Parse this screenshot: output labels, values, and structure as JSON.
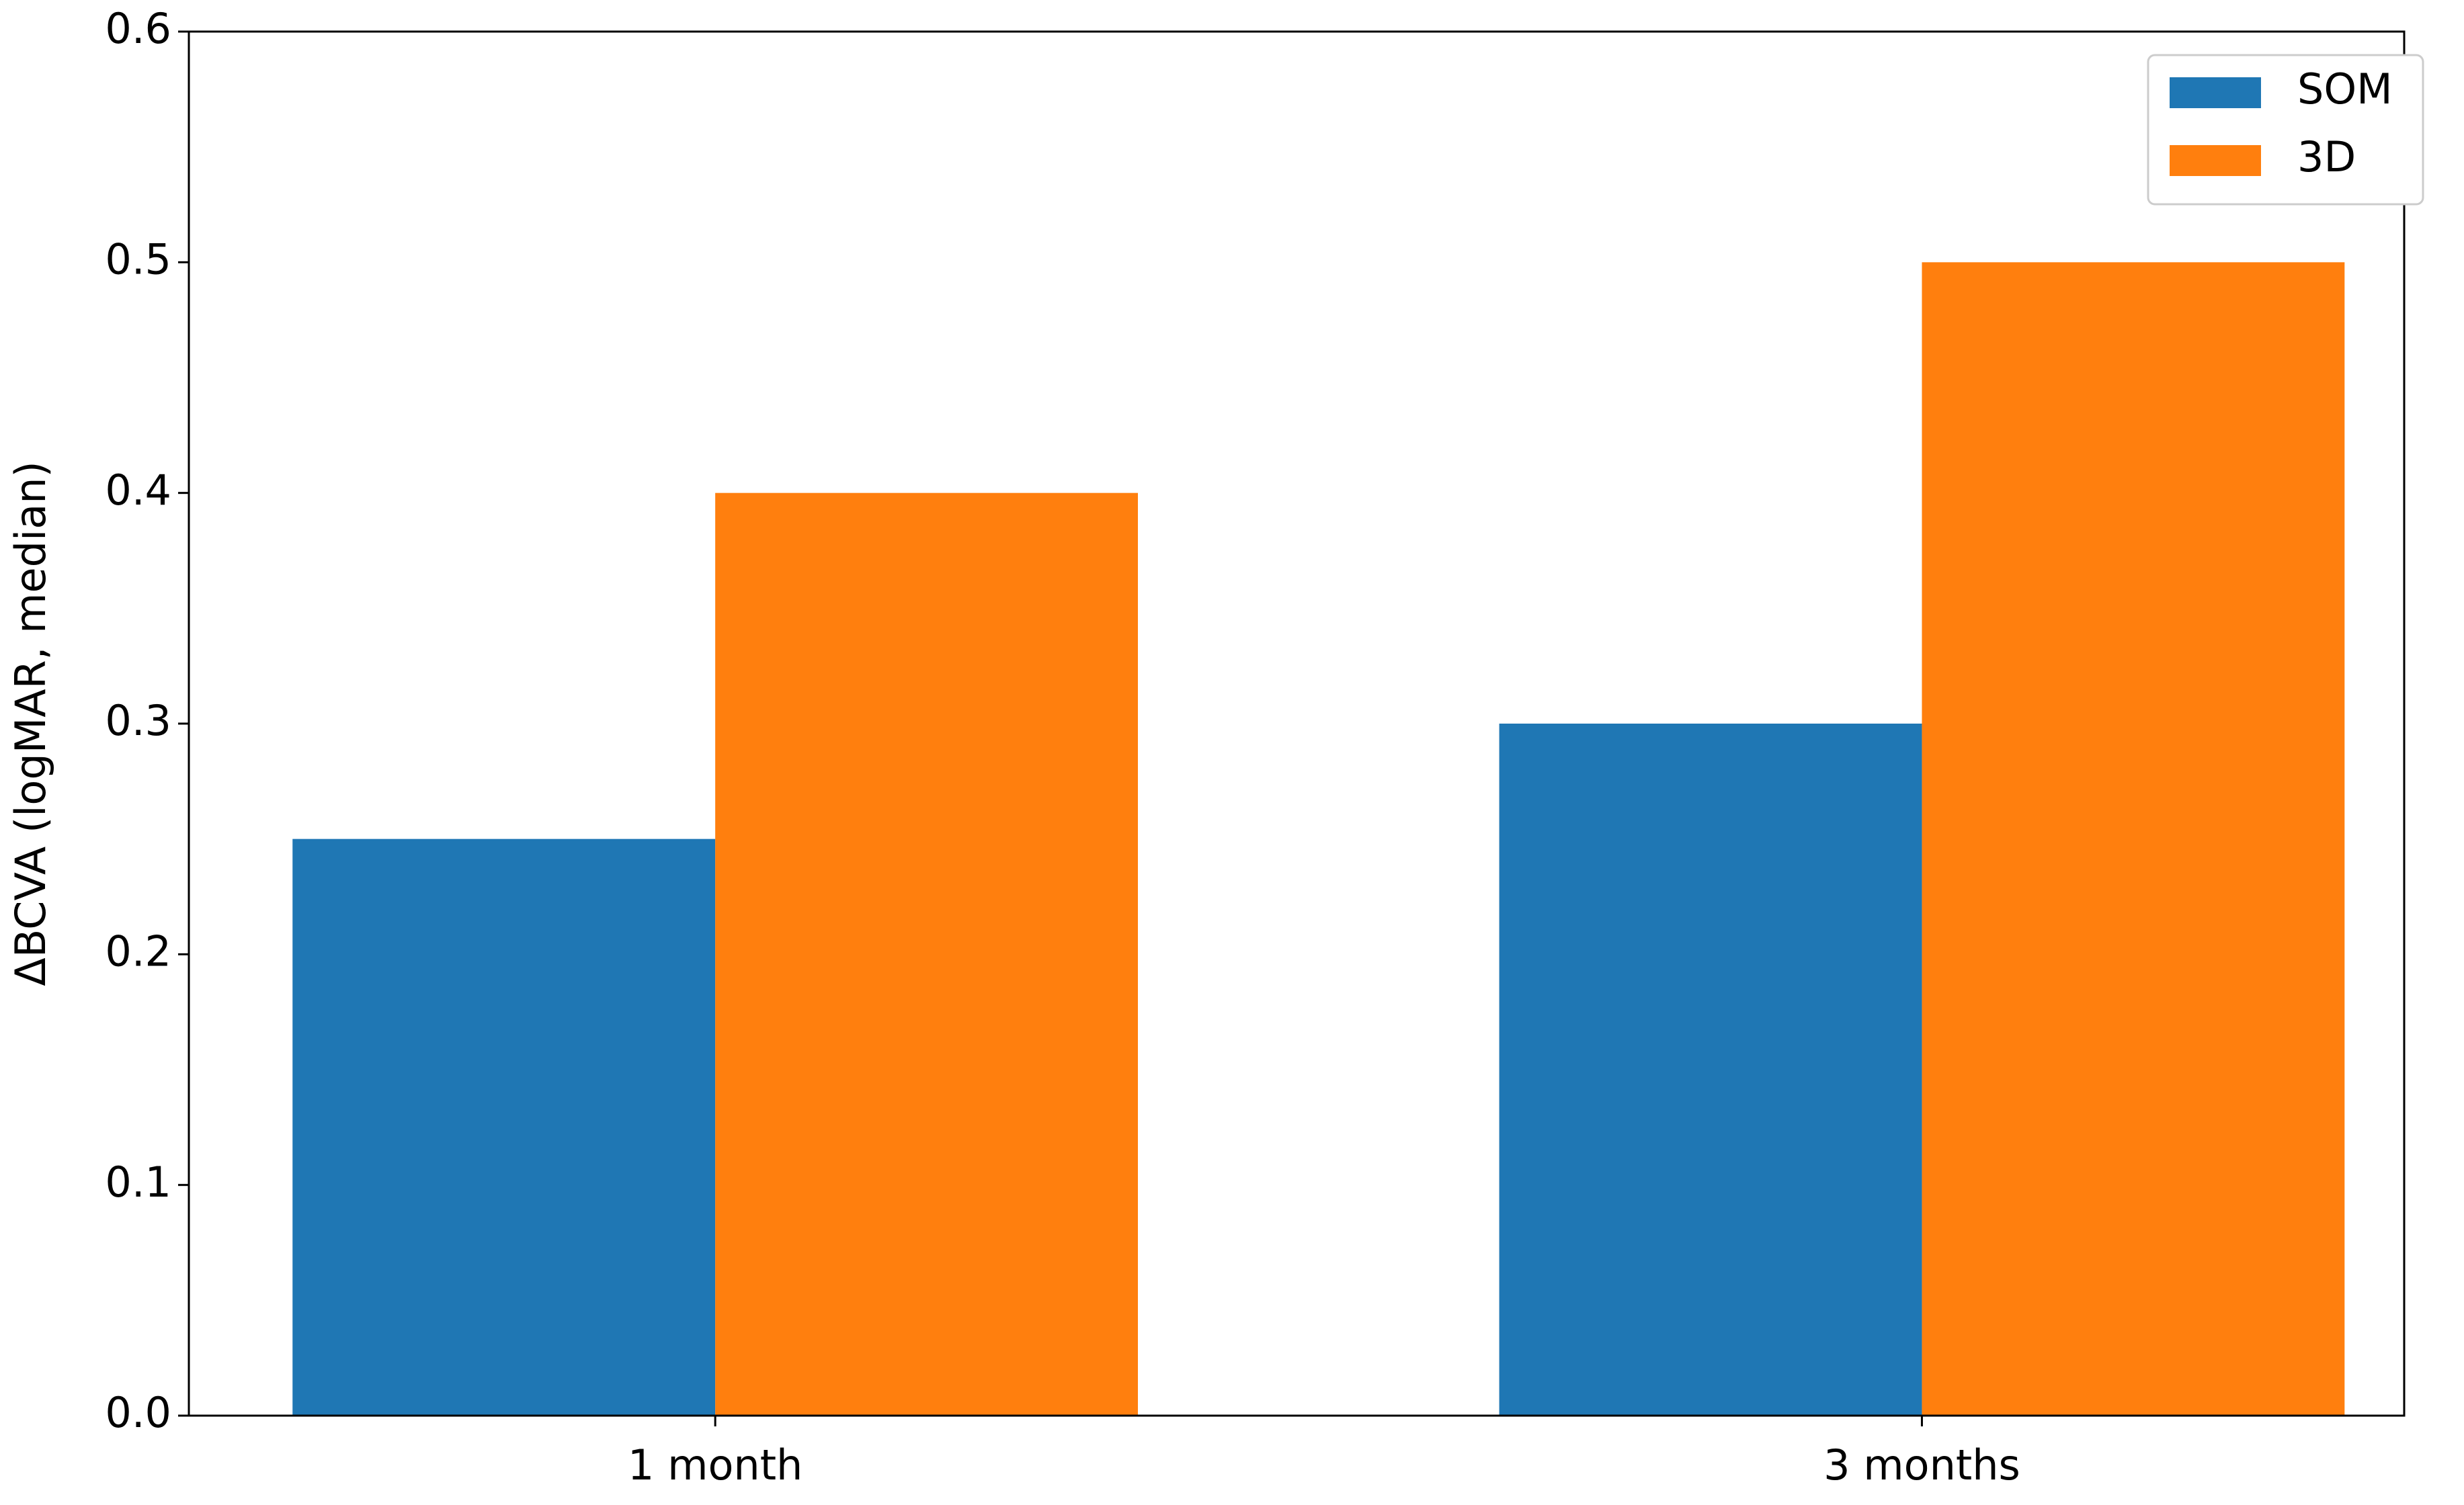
{
  "chart_data": {
    "type": "bar",
    "y_label": "ΔBCVA (logMAR, median)",
    "categories": [
      "1 month",
      "3 months"
    ],
    "series": [
      {
        "name": "SOM",
        "color": "#1f77b4",
        "values": [
          0.25,
          0.3
        ]
      },
      {
        "name": "3D",
        "color": "#ff7f0e",
        "values": [
          0.4,
          0.5
        ]
      }
    ],
    "ylim": [
      0,
      0.6
    ],
    "yticks": [
      {
        "value": 0,
        "label": "0.0"
      },
      0.1,
      0.2,
      0.3,
      0.4,
      0.5,
      {
        "value": 0.6,
        "label": "0.6"
      }
    ],
    "legend": "upper right"
  }
}
